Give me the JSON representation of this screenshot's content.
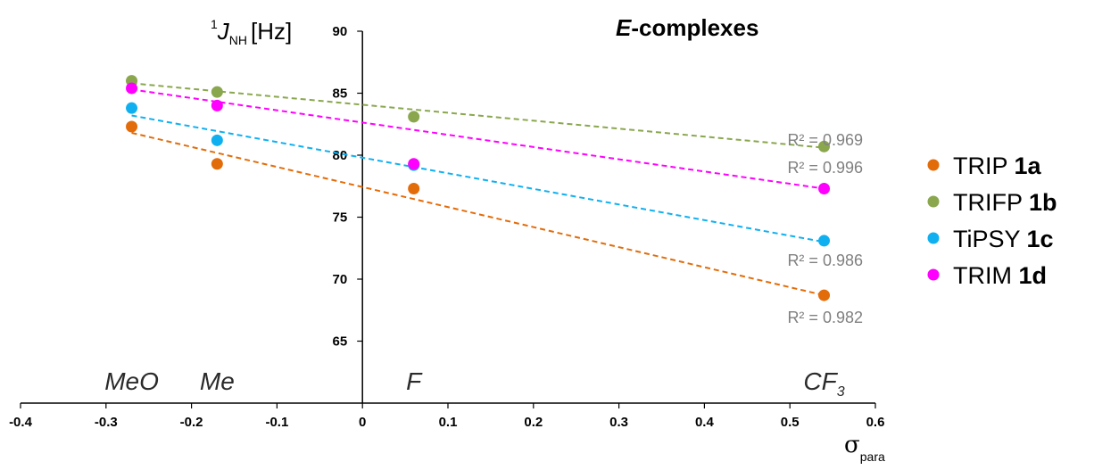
{
  "chart_data": {
    "type": "scatter",
    "title_prefix": "E",
    "title_suffix": "-complexes",
    "ylabel": {
      "superscript": "1",
      "symbol": "J",
      "subscript": "NH",
      "unit": "[Hz]"
    },
    "xlabel": {
      "symbol": "σ",
      "subscript": "para"
    },
    "xlim": [
      -0.4,
      0.6
    ],
    "ylim": [
      60,
      90
    ],
    "xticks": [
      "-0.4",
      "-0.3",
      "-0.2",
      "-0.1",
      "0",
      "0.1",
      "0.2",
      "0.3",
      "0.4",
      "0.5",
      "0.6"
    ],
    "xtick_values": [
      -0.4,
      -0.3,
      -0.2,
      -0.1,
      0,
      0.1,
      0.2,
      0.3,
      0.4,
      0.5,
      0.6
    ],
    "yticks": [
      "65",
      "70",
      "75",
      "80",
      "85",
      "90"
    ],
    "ytick_values": [
      65,
      70,
      75,
      80,
      85,
      90
    ],
    "substituents": [
      {
        "label": "MeO",
        "sub": "",
        "x": -0.27
      },
      {
        "label": "Me",
        "sub": "",
        "x": -0.17
      },
      {
        "label": "F",
        "sub": "",
        "x": 0.06
      },
      {
        "label": "CF",
        "sub": "3",
        "x": 0.54
      }
    ],
    "x": [
      -0.27,
      -0.17,
      0.06,
      0.54
    ],
    "series": [
      {
        "name": "TRIP ",
        "bold": "1a",
        "color": "#e36c0a",
        "values": [
          82.3,
          79.3,
          77.3,
          68.7
        ],
        "r2": "R² = 0.982",
        "trend_start": 81.8,
        "trend_end": 68.7
      },
      {
        "name": "TRIFP ",
        "bold": "1b",
        "color": "#8aa74e",
        "values": [
          86.0,
          85.1,
          83.1,
          80.7
        ],
        "r2": "R² = 0.969",
        "trend_start": 85.8,
        "trend_end": 80.6
      },
      {
        "name": "TiPSY ",
        "bold": "1c",
        "color": "#10b0f0",
        "values": [
          83.8,
          81.2,
          79.2,
          73.1
        ],
        "r2": "R² = 0.986",
        "trend_start": 83.2,
        "trend_end": 73.0
      },
      {
        "name": "TRIM ",
        "bold": "1d",
        "color": "#ff00ff",
        "values": [
          85.4,
          84.0,
          79.3,
          77.3
        ],
        "r2": "R² = 0.996",
        "trend_start": 85.3,
        "trend_end": 77.3
      }
    ],
    "grid": false,
    "legend_position": "right"
  }
}
